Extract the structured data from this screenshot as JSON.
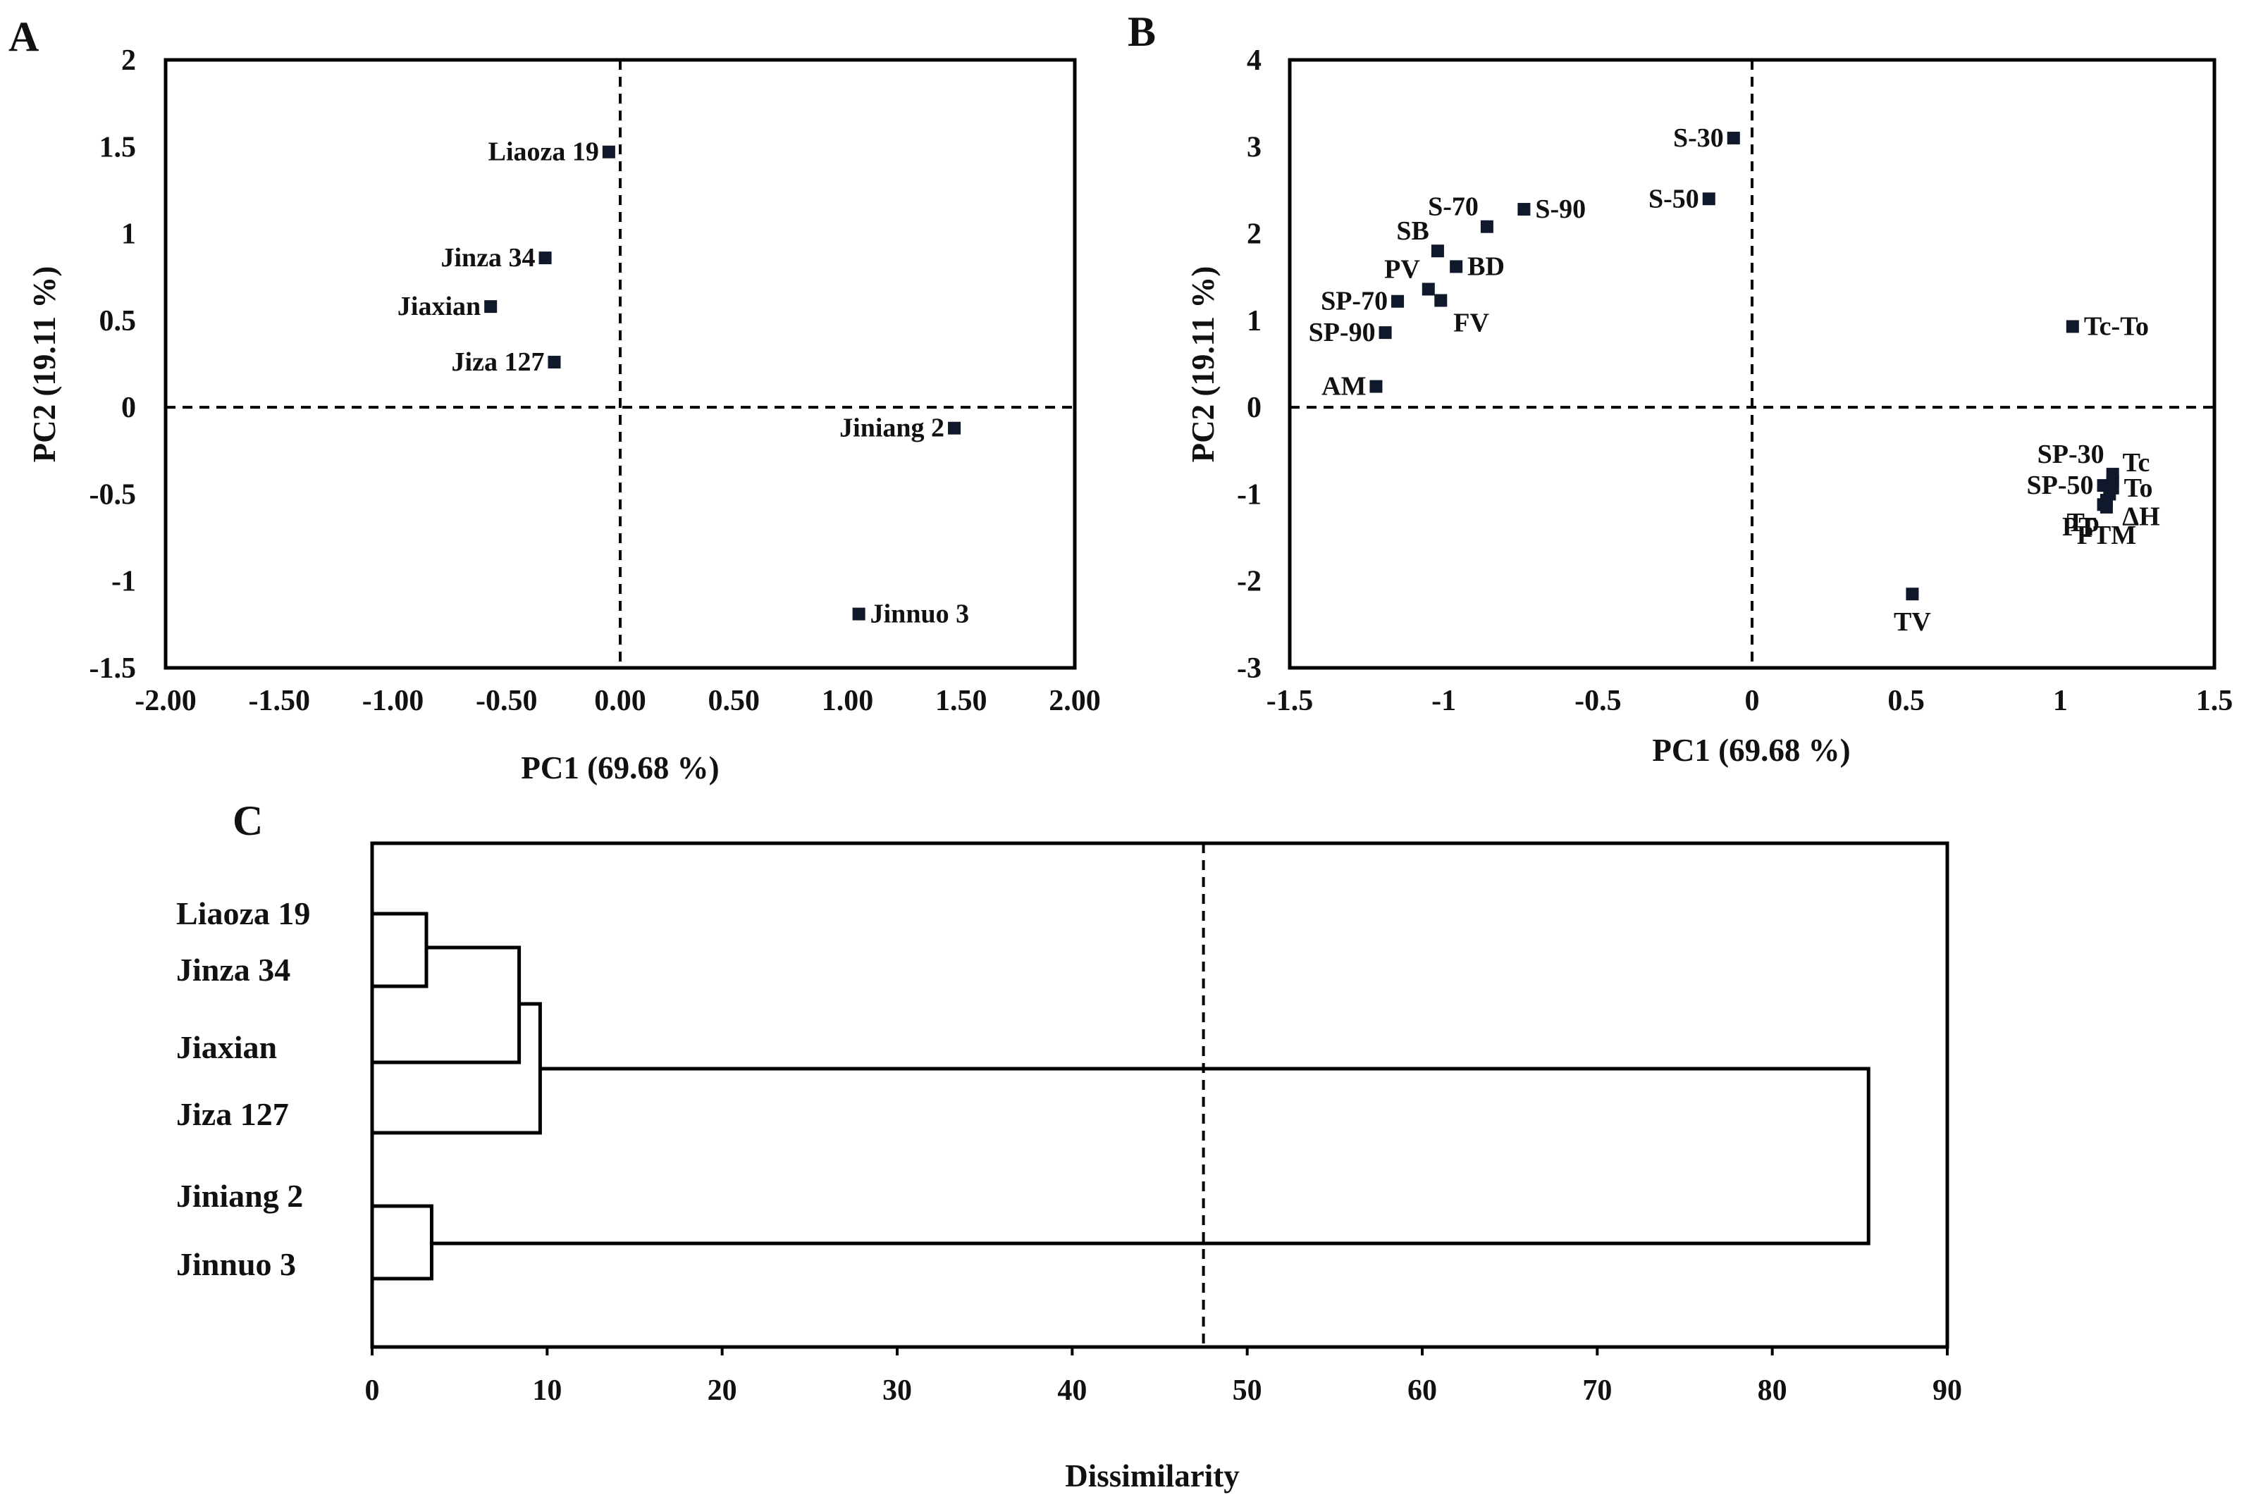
{
  "chart_data": [
    {
      "panel": "A",
      "type": "scatter",
      "xlabel": "PC1 (69.68 %)",
      "ylabel": "PC2 (19.11 %)",
      "xlim": [
        -2.0,
        2.0
      ],
      "ylim": [
        -1.5,
        2.0
      ],
      "xticks": [
        "-2.00",
        "-1.50",
        "-1.00",
        "-0.50",
        "0.00",
        "0.50",
        "1.00",
        "1.50",
        "2.00"
      ],
      "yticks": [
        "2",
        "1.5",
        "1",
        "0.5",
        "0",
        "-0.5",
        "-1",
        "-1.5"
      ],
      "reference_lines": {
        "x": 0,
        "y": 0
      },
      "points": [
        {
          "label": "Liaoza 19",
          "x": -0.05,
          "y": 1.47,
          "label_side": "left"
        },
        {
          "label": "Jinza 34",
          "x": -0.33,
          "y": 0.86,
          "label_side": "left"
        },
        {
          "label": "Jiaxian",
          "x": -0.57,
          "y": 0.58,
          "label_side": "left"
        },
        {
          "label": "Jiza 127",
          "x": -0.29,
          "y": 0.26,
          "label_side": "left"
        },
        {
          "label": "Jiniang 2",
          "x": 1.47,
          "y": -0.12,
          "label_side": "left"
        },
        {
          "label": "Jinnuo 3",
          "x": 1.05,
          "y": -1.19,
          "label_side": "right"
        }
      ]
    },
    {
      "panel": "B",
      "type": "scatter",
      "xlabel": "PC1  (69.68 %)",
      "ylabel": "PC2 (19.11 %)",
      "xlim": [
        -1.5,
        1.5
      ],
      "ylim": [
        -3,
        4
      ],
      "xticks": [
        "-1.5",
        "-1",
        "-0.5",
        "0",
        "0.5",
        "1",
        "1.5"
      ],
      "yticks": [
        "4",
        "3",
        "2",
        "1",
        "0",
        "-1",
        "-2",
        "-3"
      ],
      "reference_lines": {
        "x": 0,
        "y": 0
      },
      "points": [
        {
          "label": "S-30",
          "x": -0.06,
          "y": 3.1,
          "label_side": "left"
        },
        {
          "label": "S-50",
          "x": -0.14,
          "y": 2.4,
          "label_side": "left"
        },
        {
          "label": "S-90",
          "x": -0.74,
          "y": 2.28,
          "label_side": "right"
        },
        {
          "label": "S-70",
          "x": -0.86,
          "y": 2.08,
          "label_side": "above-left"
        },
        {
          "label": "SB",
          "x": -1.02,
          "y": 1.8,
          "label_side": "above-left"
        },
        {
          "label": "BD",
          "x": -0.96,
          "y": 1.62,
          "label_side": "right"
        },
        {
          "label": "PV",
          "x": -1.05,
          "y": 1.36,
          "label_side": "above-left"
        },
        {
          "label": "FV",
          "x": -1.01,
          "y": 1.23,
          "label_side": "below-right"
        },
        {
          "label": "SP-70",
          "x": -1.15,
          "y": 1.22,
          "label_side": "left"
        },
        {
          "label": "SP-90",
          "x": -1.19,
          "y": 0.86,
          "label_side": "left"
        },
        {
          "label": "AM",
          "x": -1.22,
          "y": 0.24,
          "label_side": "left"
        },
        {
          "label": "Tc-To",
          "x": 1.04,
          "y": 0.93,
          "label_side": "right"
        },
        {
          "label": "SP-30",
          "x": 1.17,
          "y": -0.77,
          "label_side": "above-left"
        },
        {
          "label": "Tc",
          "x": 1.17,
          "y": -0.85,
          "label_side": "above-right"
        },
        {
          "label": "To",
          "x": 1.17,
          "y": -0.93,
          "label_side": "right"
        },
        {
          "label": "SP-50",
          "x": 1.14,
          "y": -0.9,
          "label_side": "left"
        },
        {
          "label": "ΔH",
          "x": 1.16,
          "y": -1.0,
          "label_side": "below-right"
        },
        {
          "label": "Tp",
          "x": 1.15,
          "y": -1.07,
          "label_side": "below-left"
        },
        {
          "label": "PT",
          "x": 1.14,
          "y": -1.12,
          "label_side": "below-left"
        },
        {
          "label": "PTM",
          "x": 1.15,
          "y": -1.15,
          "label_side": "below"
        },
        {
          "label": "TV",
          "x": 0.52,
          "y": -2.15,
          "label_side": "below"
        }
      ]
    },
    {
      "panel": "C",
      "type": "dendrogram",
      "xlabel": "Dissimilarity",
      "xlim": [
        0,
        90
      ],
      "xticks": [
        "0",
        "10",
        "20",
        "30",
        "40",
        "50",
        "60",
        "70",
        "80",
        "90"
      ],
      "cut_line": 47.5,
      "leaves": [
        "Liaoza 19",
        "Jinza 34",
        "Jiaxian",
        "Jiza 127",
        "Jiniang 2",
        "Jinnuo 3"
      ],
      "merges": [
        {
          "left": "Liaoza 19",
          "right": "Jinza 34",
          "height": 3.1
        },
        {
          "left": "Jiniang 2",
          "right": "Jinnuo 3",
          "height": 3.4
        },
        {
          "left": "Liaoza 19 + Jinza 34",
          "right": "Jiaxian",
          "height": 8.4
        },
        {
          "left": "Liaoza 19 + Jinza 34 + Jiaxian",
          "right": "Jiza 127",
          "height": 9.6
        },
        {
          "left": "Group 1",
          "right": "Jiniang 2 + Jinnuo 3",
          "height": 85.5
        }
      ]
    }
  ]
}
